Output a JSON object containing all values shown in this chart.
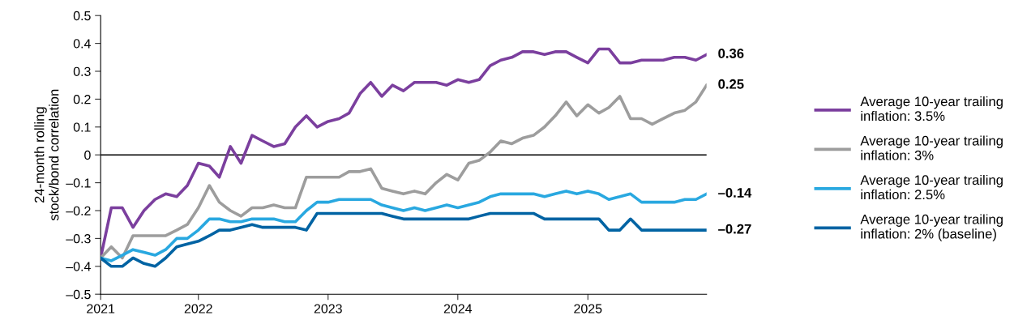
{
  "chart_data": {
    "type": "line",
    "ylabel": "24-month rolling stock/bond correlation",
    "x": [
      "2021-04",
      "2021-05",
      "2021-06",
      "2021-07",
      "2021-08",
      "2021-09",
      "2021-10",
      "2021-11",
      "2021-12",
      "2022-01",
      "2022-02",
      "2022-03",
      "2022-04",
      "2022-05",
      "2022-06",
      "2022-07",
      "2022-08",
      "2022-09",
      "2022-10",
      "2022-11",
      "2022-12",
      "2023-01",
      "2023-02",
      "2023-03",
      "2023-04",
      "2023-05",
      "2023-06",
      "2023-07",
      "2023-08",
      "2023-09",
      "2023-10",
      "2023-11",
      "2023-12",
      "2024-01",
      "2024-02",
      "2024-03",
      "2024-04",
      "2024-05",
      "2024-06",
      "2024-07",
      "2024-08",
      "2024-09",
      "2024-10",
      "2024-11",
      "2024-12",
      "2025-01",
      "2025-02",
      "2025-03",
      "2025-04",
      "2025-05",
      "2025-06",
      "2025-07",
      "2025-08",
      "2025-09",
      "2025-10",
      "2025-11",
      "2025-12"
    ],
    "series": [
      {
        "name": "Average 10-year trailing inflation: 3.5%",
        "color": "#7b3f9e",
        "values": [
          -0.37,
          -0.19,
          -0.19,
          -0.26,
          -0.2,
          -0.16,
          -0.14,
          -0.15,
          -0.11,
          -0.03,
          -0.04,
          -0.08,
          0.03,
          -0.03,
          0.07,
          0.05,
          0.03,
          0.04,
          0.1,
          0.14,
          0.1,
          0.12,
          0.13,
          0.15,
          0.22,
          0.26,
          0.21,
          0.25,
          0.23,
          0.26,
          0.26,
          0.26,
          0.25,
          0.27,
          0.26,
          0.27,
          0.32,
          0.34,
          0.35,
          0.37,
          0.37,
          0.36,
          0.37,
          0.37,
          0.35,
          0.33,
          0.38,
          0.38,
          0.33,
          0.33,
          0.34,
          0.34,
          0.34,
          0.35,
          0.35,
          0.34,
          0.36
        ]
      },
      {
        "name": "Average 10-year trailing inflation: 3%",
        "color": "#9d9d9d",
        "values": [
          -0.37,
          -0.33,
          -0.37,
          -0.29,
          -0.29,
          -0.29,
          -0.29,
          -0.27,
          -0.25,
          -0.19,
          -0.11,
          -0.17,
          -0.2,
          -0.22,
          -0.19,
          -0.19,
          -0.18,
          -0.19,
          -0.19,
          -0.08,
          -0.08,
          -0.08,
          -0.08,
          -0.06,
          -0.06,
          -0.05,
          -0.12,
          -0.13,
          -0.14,
          -0.13,
          -0.14,
          -0.1,
          -0.07,
          -0.09,
          -0.03,
          -0.02,
          0.01,
          0.05,
          0.04,
          0.06,
          0.07,
          0.1,
          0.14,
          0.19,
          0.14,
          0.18,
          0.15,
          0.17,
          0.21,
          0.13,
          0.13,
          0.11,
          0.13,
          0.15,
          0.16,
          0.19,
          0.25
        ]
      },
      {
        "name": "Average 10-year trailing inflation: 2.5%",
        "color": "#29a8e0",
        "values": [
          -0.37,
          -0.38,
          -0.36,
          -0.34,
          -0.35,
          -0.36,
          -0.34,
          -0.3,
          -0.3,
          -0.27,
          -0.23,
          -0.23,
          -0.24,
          -0.24,
          -0.23,
          -0.23,
          -0.23,
          -0.24,
          -0.24,
          -0.2,
          -0.17,
          -0.17,
          -0.16,
          -0.16,
          -0.16,
          -0.16,
          -0.18,
          -0.19,
          -0.2,
          -0.19,
          -0.2,
          -0.19,
          -0.18,
          -0.19,
          -0.18,
          -0.17,
          -0.15,
          -0.14,
          -0.14,
          -0.14,
          -0.14,
          -0.15,
          -0.14,
          -0.13,
          -0.14,
          -0.13,
          -0.14,
          -0.16,
          -0.15,
          -0.14,
          -0.17,
          -0.17,
          -0.17,
          -0.17,
          -0.16,
          -0.16,
          -0.14
        ]
      },
      {
        "name": "Average 10-year trailing inflation: 2% (baseline)",
        "color": "#0063a3",
        "values": [
          -0.37,
          -0.4,
          -0.4,
          -0.37,
          -0.39,
          -0.4,
          -0.37,
          -0.33,
          -0.32,
          -0.31,
          -0.29,
          -0.27,
          -0.27,
          -0.26,
          -0.25,
          -0.26,
          -0.26,
          -0.26,
          -0.26,
          -0.27,
          -0.21,
          -0.21,
          -0.21,
          -0.21,
          -0.21,
          -0.21,
          -0.21,
          -0.22,
          -0.23,
          -0.23,
          -0.23,
          -0.23,
          -0.23,
          -0.23,
          -0.23,
          -0.22,
          -0.21,
          -0.21,
          -0.21,
          -0.21,
          -0.21,
          -0.23,
          -0.23,
          -0.23,
          -0.23,
          -0.23,
          -0.23,
          -0.27,
          -0.27,
          -0.23,
          -0.27,
          -0.27,
          -0.27,
          -0.27,
          -0.27,
          -0.27,
          -0.27
        ]
      }
    ],
    "xlim": [
      "2021-04",
      "2025-12"
    ],
    "xticks": [
      {
        "value": "2021-04",
        "label": "2021"
      },
      {
        "value": "2022-01",
        "label": "2022"
      },
      {
        "value": "2023-01",
        "label": "2023"
      },
      {
        "value": "2024-01",
        "label": "2024"
      },
      {
        "value": "2025-01",
        "label": "2025"
      }
    ],
    "ylim": [
      -0.5,
      0.5
    ],
    "yticks": [
      {
        "value": -0.5,
        "label": "–0.5"
      },
      {
        "value": -0.4,
        "label": "–0.4"
      },
      {
        "value": -0.3,
        "label": "–0.3"
      },
      {
        "value": -0.2,
        "label": "–0.2"
      },
      {
        "value": -0.1,
        "label": "–0.1"
      },
      0,
      0.1,
      0.2,
      0.3,
      0.4,
      0.5
    ],
    "ref_lines": [
      {
        "axis": "y",
        "value": 0,
        "color": "#000000"
      }
    ],
    "annotations": [
      {
        "text": "0.36",
        "x": "2025-12",
        "y": 0.36
      },
      {
        "text": "0.25",
        "x": "2025-12",
        "y": 0.25
      },
      {
        "text": "–0.14",
        "x": "2025-12",
        "y": -0.14
      },
      {
        "text": "–0.27",
        "x": "2025-12",
        "y": -0.27
      }
    ],
    "grid": false,
    "legend": "right",
    "marker": "none",
    "line_style": "solid"
  }
}
